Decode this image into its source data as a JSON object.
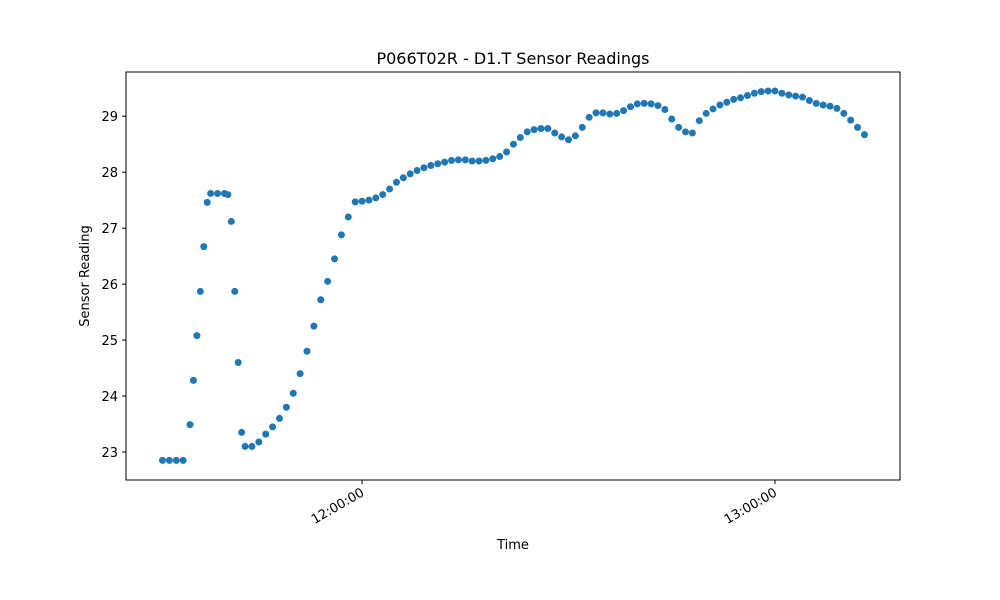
{
  "chart_data": {
    "type": "scatter",
    "title": "P066T02R - D1.T Sensor Readings",
    "x_label": "Time",
    "y_label": "Sensor Reading",
    "color": "#1f77b4",
    "x": [
      "11:31:00",
      "11:32:00",
      "11:33:00",
      "11:34:00",
      "11:35:00",
      "11:35:30",
      "11:36:00",
      "11:36:30",
      "11:37:00",
      "11:37:30",
      "11:38:00",
      "11:39:00",
      "11:40:00",
      "11:40:30",
      "11:41:00",
      "11:41:30",
      "11:42:00",
      "11:42:30",
      "11:43:00",
      "11:44:00",
      "11:45:00",
      "11:46:00",
      "11:47:00",
      "11:48:00",
      "11:49:00",
      "11:50:00",
      "11:51:00",
      "11:52:00",
      "11:53:00",
      "11:54:00",
      "11:55:00",
      "11:56:00",
      "11:57:00",
      "11:58:00",
      "11:59:00",
      "12:00:00",
      "12:01:00",
      "12:02:00",
      "12:03:00",
      "12:04:00",
      "12:05:00",
      "12:06:00",
      "12:07:00",
      "12:08:00",
      "12:09:00",
      "12:10:00",
      "12:11:00",
      "12:12:00",
      "12:13:00",
      "12:14:00",
      "12:15:00",
      "12:16:00",
      "12:17:00",
      "12:18:00",
      "12:19:00",
      "12:20:00",
      "12:21:00",
      "12:22:00",
      "12:23:00",
      "12:24:00",
      "12:25:00",
      "12:26:00",
      "12:27:00",
      "12:28:00",
      "12:29:00",
      "12:30:00",
      "12:31:00",
      "12:32:00",
      "12:33:00",
      "12:34:00",
      "12:35:00",
      "12:36:00",
      "12:37:00",
      "12:38:00",
      "12:39:00",
      "12:40:00",
      "12:41:00",
      "12:42:00",
      "12:43:00",
      "12:44:00",
      "12:45:00",
      "12:46:00",
      "12:47:00",
      "12:48:00",
      "12:49:00",
      "12:50:00",
      "12:51:00",
      "12:52:00",
      "12:53:00",
      "12:54:00",
      "12:55:00",
      "12:56:00",
      "12:57:00",
      "12:58:00",
      "12:59:00",
      "13:00:00",
      "13:01:00",
      "13:02:00",
      "13:03:00",
      "13:04:00",
      "13:05:00",
      "13:06:00",
      "13:07:00",
      "13:08:00",
      "13:09:00",
      "13:10:00",
      "13:11:00",
      "13:12:00",
      "13:13:00"
    ],
    "values": [
      22.85,
      22.85,
      22.85,
      22.85,
      23.49,
      24.28,
      25.08,
      25.87,
      26.67,
      27.46,
      27.62,
      27.62,
      27.62,
      27.6,
      27.12,
      25.87,
      24.6,
      23.35,
      23.1,
      23.1,
      23.18,
      23.32,
      23.45,
      23.6,
      23.8,
      24.05,
      24.4,
      24.8,
      25.25,
      25.72,
      26.05,
      26.45,
      26.88,
      27.2,
      27.47,
      27.48,
      27.5,
      27.54,
      27.6,
      27.7,
      27.82,
      27.9,
      27.97,
      28.03,
      28.08,
      28.12,
      28.15,
      28.18,
      28.21,
      28.22,
      28.22,
      28.2,
      28.2,
      28.21,
      28.24,
      28.28,
      28.36,
      28.5,
      28.62,
      28.72,
      28.76,
      28.78,
      28.78,
      28.7,
      28.63,
      28.58,
      28.65,
      28.8,
      28.98,
      29.06,
      29.06,
      29.04,
      29.05,
      29.1,
      29.17,
      29.22,
      29.23,
      29.22,
      29.19,
      29.12,
      28.95,
      28.8,
      28.72,
      28.7,
      28.92,
      29.05,
      29.13,
      29.2,
      29.25,
      29.3,
      29.33,
      29.37,
      29.41,
      29.44,
      29.45,
      29.45,
      29.41,
      29.38,
      29.36,
      29.34,
      29.28,
      29.23,
      29.2,
      29.18,
      29.14,
      29.05,
      28.93,
      28.8,
      28.67
    ],
    "xlim": [
      "11:25:42",
      "13:18:10"
    ],
    "xticks": [
      "12:00:00",
      "13:00:00"
    ],
    "ylim": [
      22.5,
      29.79
    ],
    "yticks": [
      23,
      24,
      25,
      26,
      27,
      28,
      29
    ]
  }
}
